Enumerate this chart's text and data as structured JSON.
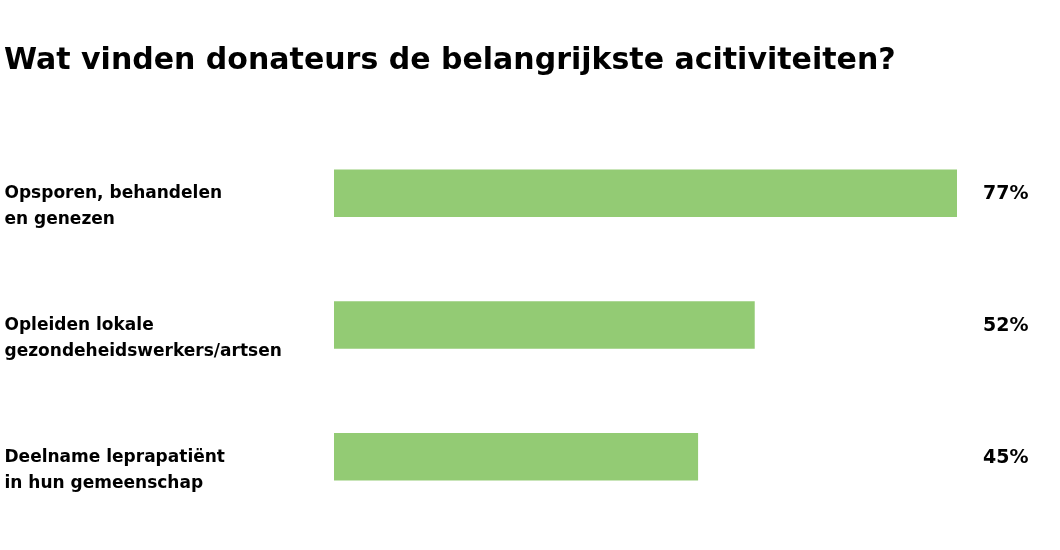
{
  "chart_data": {
    "type": "bar",
    "orientation": "horizontal",
    "title": "Wat vinden donateurs de belangrijkste acitiviteiten?",
    "categories": [
      "Opsporen, behandelen en genezen",
      "Opleiden lokale gezondeheidswerkers/artsen",
      "Deelname leprapatiënt in hun gemeenschap"
    ],
    "values": [
      77,
      52,
      45
    ],
    "color": "#93cb74",
    "value_labels": [
      "77%",
      "52%",
      "45%"
    ]
  }
}
